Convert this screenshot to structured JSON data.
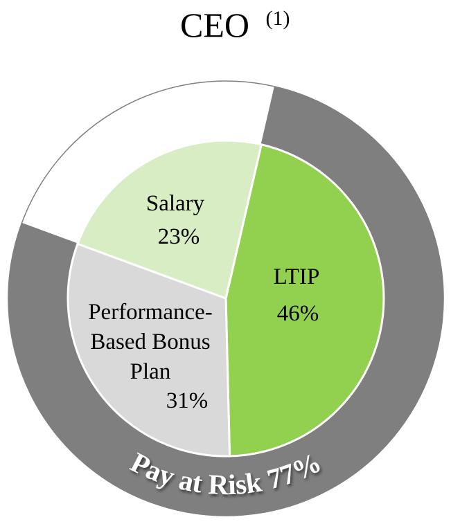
{
  "chart_data": {
    "type": "pie",
    "title": "CEO",
    "title_superscript": "(1)",
    "inner": {
      "categories": [
        "LTIP",
        "Performance-Based Bonus Plan",
        "Salary"
      ],
      "values": [
        46,
        31,
        23
      ],
      "value_labels": [
        "46%",
        "31%",
        "23%"
      ],
      "colors": [
        "#92d050",
        "#d9d9d9",
        "#d8edc4"
      ]
    },
    "outer": {
      "categories": [
        "Pay at Risk",
        null
      ],
      "values": [
        77,
        23
      ],
      "value_labels": [
        "77%",
        null
      ],
      "colors": [
        "#7f7f7f",
        "#ffffff"
      ]
    }
  }
}
